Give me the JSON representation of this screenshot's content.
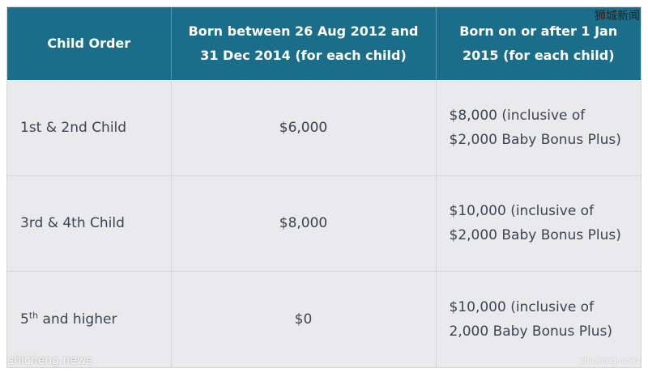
{
  "table": {
    "headers": [
      "Child Order",
      "Born between 26 Aug 2012 and 31 Dec 2014 (for each child)",
      "Born on or after  1 Jan 2015 (for each child)"
    ],
    "rows": [
      {
        "order": "1st & 2nd Child",
        "order_sup": "",
        "amount_2012_2014": "$6,000",
        "amount_2015_line1": "$8,000 (inclusive of",
        "amount_2015_line2": "$2,000 Baby Bonus Plus)"
      },
      {
        "order": "3rd & 4th Child",
        "order_sup": "",
        "amount_2012_2014": "$8,000",
        "amount_2015_line1": "$10,000 (inclusive of",
        "amount_2015_line2": "$2,000 Baby Bonus Plus)"
      },
      {
        "order": "5",
        "order_sup": "th",
        "order_suffix": " and higher",
        "amount_2012_2014": "$0",
        "amount_2015_line1": "$10,000 (inclusive of",
        "amount_2015_line2": "2,000 Baby Bonus Plus)"
      }
    ]
  },
  "watermarks": {
    "top_right": "狮城新闻",
    "bottom_left": "shicheng.news",
    "bottom_right": "shicheng.news"
  }
}
